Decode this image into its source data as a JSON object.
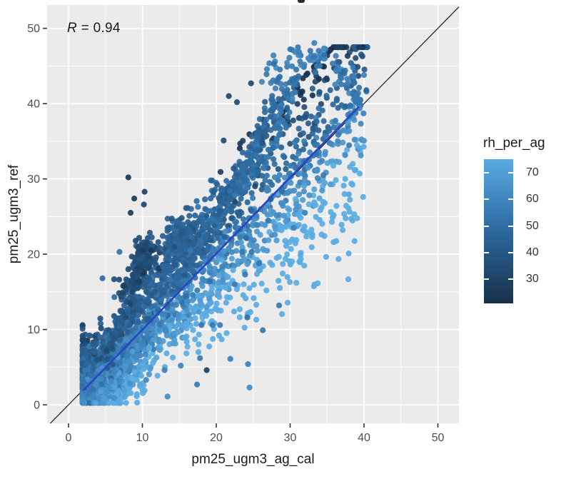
{
  "annotation": {
    "var": "R",
    "rest": " = 0.94"
  },
  "chart_data": {
    "type": "scatter",
    "xlabel": "pm25_ugm3_ag_cal",
    "ylabel": "pm25_ugm3_ref",
    "xlim": [
      -2.9,
      52.85
    ],
    "ylim": [
      -2.46,
      53.1
    ],
    "x_ticks": [
      0,
      10,
      20,
      30,
      40,
      50
    ],
    "y_ticks": [
      0,
      10,
      20,
      30,
      40,
      50
    ],
    "minor_ticks": [
      5,
      15,
      25,
      35,
      45
    ],
    "grid": true,
    "legend_position": "right",
    "annotation_text": "R = 0.94",
    "colors": {
      "panel_bg": "#ebebeb",
      "grid": "#ffffff",
      "axis_tick_label": "#4d4d4d",
      "axis_tick_mark": "#333333",
      "identity_line": "#1a1a1a",
      "regression_line": "#2646c4"
    },
    "identity_line": {
      "slope": 1,
      "intercept": 0
    },
    "regression_line": {
      "x1": 2.0,
      "y1": 1.9,
      "x2": 39.3,
      "y2": 39.6
    },
    "colorbar": {
      "title": "rh_per_ag",
      "domain": [
        21,
        75
      ],
      "ticks": [
        70,
        60,
        50,
        40,
        30
      ],
      "gradient_stops": [
        {
          "v": 21,
          "c": "#17304a"
        },
        {
          "v": 50,
          "c": "#2e6da4"
        },
        {
          "v": 76,
          "c": "#5aabe2"
        }
      ]
    },
    "point_style": {
      "radius": 4.1,
      "opacity": 0.92
    },
    "scatter_model": {
      "seed": 42,
      "n_total_approx": 3900,
      "rh_rule": {
        "base": 57,
        "diff_coef": 3.0,
        "noise": 6,
        "min": 22,
        "max": 76
      },
      "clusters": [
        {
          "type": "fan",
          "n": 1900,
          "x0": 2,
          "xspread": 38,
          "tpow": 1.6,
          "origin": 1.3,
          "slope_mean": 1.02,
          "slope_sd": 0.24,
          "slope_min": 0.5,
          "slope_max": 1.9,
          "ynoise": 0.9,
          "ycap_abs": 47.5,
          "ycap_slope": 1.02,
          "ycap_int": 11
        },
        {
          "type": "gauss",
          "n": 800,
          "cx": 4.6,
          "cy": 4.2,
          "sx": 2.3,
          "sy": 2.6
        },
        {
          "type": "streak",
          "n": 90,
          "x1": 4.5,
          "y1": 6,
          "x2": 9,
          "y2": 15,
          "jitter": 0.55,
          "rh": 40
        },
        {
          "type": "streak",
          "n": 110,
          "x1": 7,
          "y1": 9,
          "x2": 15,
          "y2": 23,
          "jitter": 0.6,
          "rh": 43
        },
        {
          "type": "streak",
          "n": 160,
          "x1": 8.2,
          "y1": 15.3,
          "x2": 11.2,
          "y2": 21.5,
          "jitter": 0.8,
          "rh": 34
        },
        {
          "type": "streak",
          "n": 120,
          "x1": 10,
          "y1": 12,
          "x2": 20,
          "y2": 29,
          "jitter": 0.7,
          "rh": 46
        },
        {
          "type": "gauss",
          "n": 140,
          "cx": 15.3,
          "cy": 21.8,
          "sx": 1.3,
          "sy": 1.6,
          "rh": 44
        },
        {
          "type": "streak",
          "n": 110,
          "x1": 13,
          "y1": 14,
          "x2": 24,
          "y2": 32,
          "jitter": 0.7,
          "rh": 48
        },
        {
          "type": "streak",
          "n": 100,
          "x1": 18,
          "y1": 22,
          "x2": 27,
          "y2": 37.5,
          "jitter": 0.6,
          "rh": 45
        },
        {
          "type": "streak",
          "n": 90,
          "x1": 22,
          "y1": 27,
          "x2": 29.5,
          "y2": 43,
          "jitter": 0.6,
          "rh": 49
        },
        {
          "type": "streak",
          "n": 70,
          "x1": 25.5,
          "y1": 30,
          "x2": 31,
          "y2": 44.5,
          "jitter": 0.6,
          "rh": 52
        },
        {
          "type": "arc",
          "n": 70,
          "cx": 32.3,
          "cy": 41.3,
          "rx": 5.6,
          "ry": 5.2,
          "a1": 155,
          "a2": 15,
          "jitter": 0.8,
          "rh": 57
        },
        {
          "type": "streak",
          "n": 25,
          "x1": 37.8,
          "y1": 43.5,
          "x2": 39.3,
          "y2": 39,
          "jitter": 0.5,
          "rh": 55
        }
      ],
      "extra_points": [
        [
          8.1,
          30.2,
          24
        ],
        [
          8.9,
          27.4,
          25
        ],
        [
          10.3,
          28.3,
          30
        ],
        [
          10.2,
          26.6,
          31
        ],
        [
          8.4,
          25.5,
          25
        ],
        [
          21.7,
          41.0,
          30
        ],
        [
          22.8,
          40.2,
          33
        ],
        [
          24.7,
          42.7,
          32
        ],
        [
          21.0,
          35.1,
          33
        ],
        [
          6.9,
          20.3,
          52
        ],
        [
          4.6,
          16.8,
          48
        ],
        [
          6.2,
          14.3,
          50
        ],
        [
          18.7,
          4.6,
          28
        ],
        [
          10.5,
          3.3,
          60
        ],
        [
          13.4,
          1.1,
          62
        ],
        [
          13.0,
          4.6,
          58
        ],
        [
          15.2,
          5.2,
          60
        ],
        [
          17.4,
          2.7,
          56
        ],
        [
          17.8,
          6.2,
          55
        ],
        [
          18.0,
          10.6,
          54
        ],
        [
          19.5,
          10.6,
          55
        ],
        [
          20.5,
          10.6,
          56
        ],
        [
          21.9,
          6.1,
          57
        ],
        [
          24.3,
          5.4,
          58
        ],
        [
          24.2,
          11.6,
          52
        ],
        [
          26.3,
          9.9,
          54
        ],
        [
          24.5,
          2.3,
          62
        ],
        [
          28.5,
          13.2,
          55
        ],
        [
          22.5,
          16.0,
          55
        ],
        [
          23.9,
          17.3,
          54
        ],
        [
          25.8,
          18.8,
          53
        ],
        [
          24.8,
          20.3,
          52
        ],
        [
          28.9,
          28.6,
          52
        ],
        [
          30.8,
          31.5,
          53
        ],
        [
          33.5,
          34.5,
          55
        ],
        [
          35.3,
          36.4,
          52
        ],
        [
          30.5,
          23.5,
          58
        ],
        [
          32.0,
          25.5,
          57
        ],
        [
          34.5,
          30.5,
          56
        ],
        [
          38.5,
          44.8,
          56
        ],
        [
          40.0,
          43.8,
          57
        ],
        [
          39.5,
          40.5,
          55
        ],
        [
          38.8,
          39.0,
          56
        ]
      ]
    }
  }
}
